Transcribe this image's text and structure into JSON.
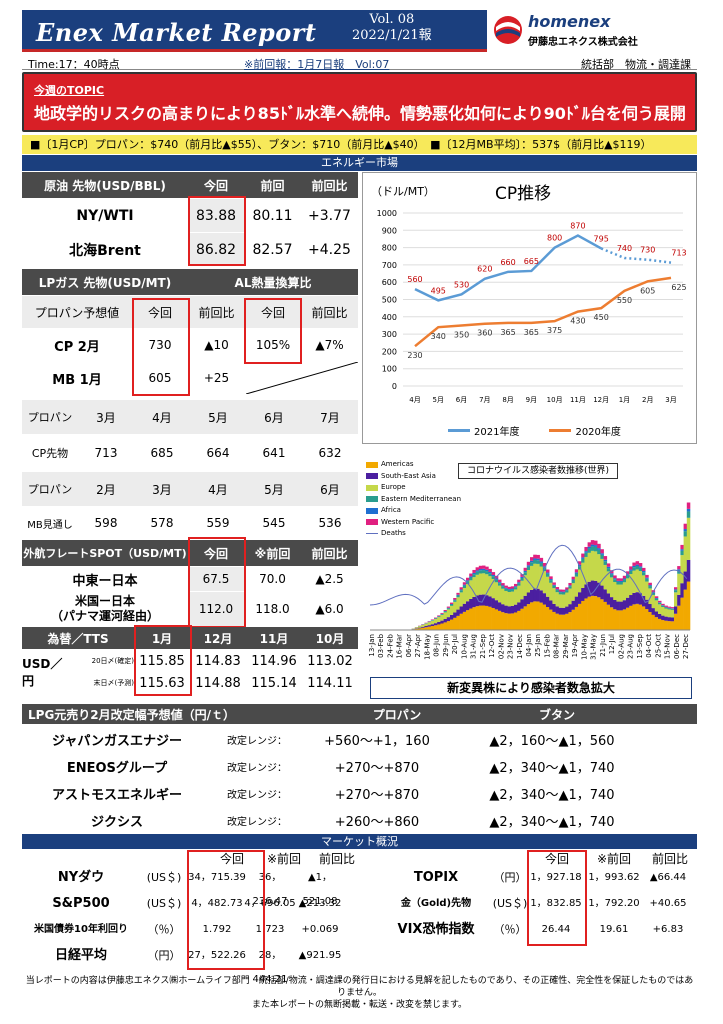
{
  "header": {
    "title": "Enex Market Report",
    "vol": "Vol. 08",
    "date": "2022/1/21報",
    "brand": "homenex",
    "company": "伊藤忠エネクス株式会社"
  },
  "info": {
    "time": "Time:17：40時点",
    "prev": "※前回報：1月7日報　Vol:07",
    "dept": "統括部　物流・調達課"
  },
  "topic": {
    "label": "今週のTOPIC",
    "headline": "地政学的リスクの高まりにより85ﾄﾞﾙ水準へ続伸。情勢悪化如何により90ﾄﾞﾙ台を伺う展開"
  },
  "summary_bar": "■〔1月CP〕プロパン：$740（前月比▲$55）、ブタン：$710（前月比▲$40）　■〔12月MB平均〕：537$（前月比▲$119）",
  "energy_section": "エネルギー市場",
  "crude": {
    "header": [
      "原油 先物(USD/BBL)",
      "今回",
      "前回",
      "前回比"
    ],
    "rows": [
      [
        "NY/WTI",
        "83.88",
        "80.11",
        "+3.77"
      ],
      [
        "北海Brent",
        "86.82",
        "82.57",
        "+4.25"
      ]
    ]
  },
  "lpg_futures": {
    "header": [
      "LPガス 先物(USD/MT)",
      "AL熱量換算比"
    ],
    "sub": [
      "プロパン予想値",
      "今回",
      "前回比",
      "今回",
      "前回比"
    ],
    "rows": [
      [
        "CP 2月",
        "730",
        "▲10",
        "105%",
        "▲7%"
      ],
      [
        "MB 1月",
        "605",
        "+25",
        "",
        ""
      ]
    ]
  },
  "cp_forecast": {
    "rows": [
      [
        "プロパン",
        "3月",
        "4月",
        "5月",
        "6月",
        "7月"
      ],
      [
        "CP先物",
        "713",
        "685",
        "664",
        "641",
        "632"
      ],
      [
        "プロパン",
        "2月",
        "3月",
        "4月",
        "5月",
        "6月"
      ],
      [
        "MB見通し",
        "598",
        "578",
        "559",
        "545",
        "536"
      ]
    ]
  },
  "freight": {
    "header": [
      "外航フレートSPOT（USD/MT)",
      "今回",
      "※前回",
      "前回比"
    ],
    "rows": [
      [
        "中東ー日本",
        "67.5",
        "70.0",
        "▲2.5"
      ],
      [
        "米国ー日本\n（パナマ運河経由）",
        "112.0",
        "118.0",
        "▲6.0"
      ]
    ]
  },
  "fx": {
    "header": [
      "為替／TTS",
      "1月",
      "12月",
      "11月",
      "10月"
    ],
    "label": "USD／円",
    "rows": [
      [
        "20日〆(確定)",
        "115.85",
        "114.83",
        "114.96",
        "113.02"
      ],
      [
        "末日〆(予測)",
        "115.63",
        "114.88",
        "115.14",
        "114.11"
      ]
    ]
  },
  "cp_chart": {
    "title": "CP推移",
    "unit": "（ドル/MT）",
    "legend": [
      "2021年度",
      "2020年度"
    ]
  },
  "chart_data": {
    "type": "line",
    "title": "CP推移",
    "ylabel": "（ドル/MT）",
    "categories": [
      "4月",
      "5月",
      "6月",
      "7月",
      "8月",
      "9月",
      "10月",
      "11月",
      "12月",
      "1月",
      "2月",
      "3月"
    ],
    "ylim": [
      0,
      1000
    ],
    "series": [
      {
        "name": "2021年度",
        "values": [
          560,
          495,
          530,
          620,
          660,
          665,
          800,
          870,
          795,
          740,
          730,
          713
        ],
        "color": "#5b9bd5"
      },
      {
        "name": "2020年度",
        "values": [
          230,
          340,
          350,
          360,
          365,
          365,
          375,
          430,
          450,
          550,
          605,
          625
        ],
        "color": "#ed7d31"
      }
    ]
  },
  "covid": {
    "title": "コロナウイルス感染者数推移(世界)",
    "legend": [
      "Americas",
      "South-East Asia",
      "Europe",
      "Eastern Mediterranean",
      "Africa",
      "Western Pacific",
      "Deaths"
    ],
    "colors": [
      "#f2a900",
      "#4b1fa0",
      "#c5d84a",
      "#2a9d8f",
      "#1f6fd1",
      "#e02080",
      "#6070c0"
    ],
    "caption": "新変異株により感染者数急拡大",
    "dates": [
      "13-Jan",
      "03-Feb",
      "24-Feb",
      "16-Mar",
      "06-Apr",
      "27-Apr",
      "18-May",
      "08-Jun",
      "29-Jun",
      "20-Jul",
      "10-Aug",
      "31-Aug",
      "21-Sep",
      "12-Oct",
      "02-Nov",
      "23-Nov",
      "14-Dec",
      "04-Jan",
      "25-Jan",
      "15-Feb",
      "08-Mar",
      "29-Mar",
      "19-Apr",
      "10-May",
      "31-May",
      "21-Jun",
      "12-Jul",
      "02-Aug",
      "23-Aug",
      "13-Sep",
      "04-Oct",
      "25-Oct",
      "15-Nov",
      "06-Dec",
      "27-Dec"
    ]
  },
  "lpg_retail": {
    "header": [
      "LPG元売り2月改定幅予想値（円/ｔ）",
      "プロパン",
      "ブタン"
    ],
    "range_label": "改定レンジ：",
    "rows": [
      [
        "ジャパンガスエナジー",
        "+560～+1，160",
        "▲2，160～▲1，560"
      ],
      [
        "ENEOSグループ",
        "+270～+870",
        "▲2，340～▲1，740"
      ],
      [
        "アストモスエネルギー",
        "+270～+870",
        "▲2，340～▲1，740"
      ],
      [
        "ジクシス",
        "+260～+860",
        "▲2，340～▲1，740"
      ]
    ]
  },
  "market": {
    "section": "マーケット概況",
    "header": [
      "今回",
      "※前回",
      "前回比"
    ],
    "left": [
      [
        "NYダウ",
        "(US＄)",
        "34，715.39",
        "36，236.47",
        "▲1，521.08"
      ],
      [
        "S&P500",
        "(US＄)",
        "4，482.73",
        "4，696.05",
        "▲213.32"
      ],
      [
        "米国債券10年利回り",
        "（％）",
        "1.792",
        "1.723",
        "+0.069"
      ],
      [
        "日経平均",
        "（円）",
        "27，522.26",
        "28，444.21",
        "▲921.95"
      ]
    ],
    "right": [
      [
        "TOPIX",
        "（円）",
        "1，927.18",
        "1，993.62",
        "▲66.44"
      ],
      [
        "金（Gold)先物",
        "(US＄)",
        "1，832.85",
        "1，792.20",
        "+40.65"
      ],
      [
        "VIX恐怖指数",
        "（％）",
        "26.44",
        "19.61",
        "+6.83"
      ]
    ]
  },
  "footer": [
    "当レポートの内容は伊藤忠エネクス㈱ホームライフ部門　統括部/物流・調達課の発行日における見解を記したものであり、その正確性、完全性を保証したものではありません。",
    "また本レポートの無断掲載・転送・改変を禁じます。"
  ]
}
